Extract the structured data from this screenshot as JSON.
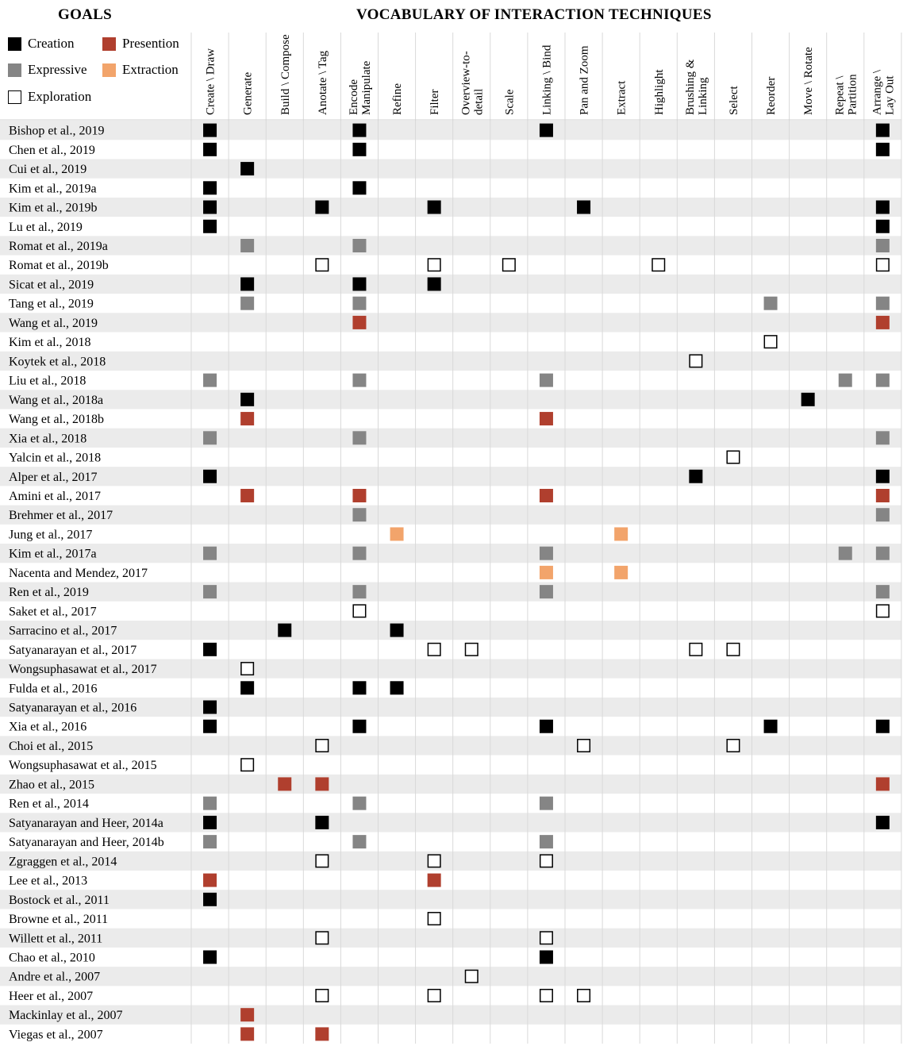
{
  "goals_title": "GOALS",
  "vocab_title": "VOCABULARY OF INTERACTION TECHNIQUES",
  "legend": [
    {
      "key": "C",
      "label": "Creation",
      "color": "#000000"
    },
    {
      "key": "P",
      "label": "Presention",
      "color": "#b03f2e"
    },
    {
      "key": "E",
      "label": "Expressive",
      "color": "#858585"
    },
    {
      "key": "X",
      "label": "Extraction",
      "color": "#f2a46b"
    },
    {
      "key": "O",
      "label": "Exploration",
      "color": "#ffffff"
    }
  ],
  "chart_data": {
    "type": "table",
    "columns": [
      "Create \\ Draw",
      "Generate",
      "Build \\ Compose",
      "Anotate \\ Tag",
      "Encode\nManipulate",
      "Refine",
      "Filter",
      "Overview-to-\ndetail",
      "Scale",
      "Linking \\ Bind",
      "Pan and Zoom",
      "Extract",
      "Highlight",
      "Brushing &\nLinking",
      "Select",
      "Reorder",
      "Move \\ Rotate",
      "Repeat \\\nPartition",
      "Arrange \\\nLay Out"
    ],
    "rows": [
      {
        "label": "Bishop et al., 2019",
        "cells": [
          "C",
          "",
          "",
          "",
          "C",
          "",
          "",
          "",
          "",
          "C",
          "",
          "",
          "",
          "",
          "",
          "",
          "",
          "",
          "C"
        ]
      },
      {
        "label": "Chen et al., 2019",
        "cells": [
          "C",
          "",
          "",
          "",
          "C",
          "",
          "",
          "",
          "",
          "",
          "",
          "",
          "",
          "",
          "",
          "",
          "",
          "",
          "C"
        ]
      },
      {
        "label": "Cui et al., 2019",
        "cells": [
          "",
          "C",
          "",
          "",
          "",
          "",
          "",
          "",
          "",
          "",
          "",
          "",
          "",
          "",
          "",
          "",
          "",
          "",
          ""
        ]
      },
      {
        "label": "Kim et al., 2019a",
        "cells": [
          "C",
          "",
          "",
          "",
          "C",
          "",
          "",
          "",
          "",
          "",
          "",
          "",
          "",
          "",
          "",
          "",
          "",
          "",
          ""
        ]
      },
      {
        "label": "Kim et al., 2019b",
        "cells": [
          "C",
          "",
          "",
          "C",
          "",
          "",
          "C",
          "",
          "",
          "",
          "C",
          "",
          "",
          "",
          "",
          "",
          "",
          "",
          "C"
        ]
      },
      {
        "label": "Lu et al., 2019",
        "cells": [
          "C",
          "",
          "",
          "",
          "",
          "",
          "",
          "",
          "",
          "",
          "",
          "",
          "",
          "",
          "",
          "",
          "",
          "",
          "C"
        ]
      },
      {
        "label": "Romat et al., 2019a",
        "cells": [
          "",
          "E",
          "",
          "",
          "E",
          "",
          "",
          "",
          "",
          "",
          "",
          "",
          "",
          "",
          "",
          "",
          "",
          "",
          "E"
        ]
      },
      {
        "label": "Romat et al., 2019b",
        "cells": [
          "",
          "",
          "",
          "O",
          "",
          "",
          "O",
          "",
          "O",
          "",
          "",
          "",
          "O",
          "",
          "",
          "",
          "",
          "",
          "O"
        ]
      },
      {
        "label": "Sicat et al., 2019",
        "cells": [
          "",
          "C",
          "",
          "",
          "C",
          "",
          "C",
          "",
          "",
          "",
          "",
          "",
          "",
          "",
          "",
          "",
          "",
          "",
          ""
        ]
      },
      {
        "label": "Tang et al., 2019",
        "cells": [
          "",
          "E",
          "",
          "",
          "E",
          "",
          "",
          "",
          "",
          "",
          "",
          "",
          "",
          "",
          "",
          "E",
          "",
          "",
          "E"
        ]
      },
      {
        "label": "Wang et al., 2019",
        "cells": [
          "",
          "",
          "",
          "",
          "P",
          "",
          "",
          "",
          "",
          "",
          "",
          "",
          "",
          "",
          "",
          "",
          "",
          "",
          "P"
        ]
      },
      {
        "label": "Kim et al., 2018",
        "cells": [
          "",
          "",
          "",
          "",
          "",
          "",
          "",
          "",
          "",
          "",
          "",
          "",
          "",
          "",
          "",
          "O",
          "",
          "",
          ""
        ]
      },
      {
        "label": "Koytek et al., 2018",
        "cells": [
          "",
          "",
          "",
          "",
          "",
          "",
          "",
          "",
          "",
          "",
          "",
          "",
          "",
          "O",
          "",
          "",
          "",
          "",
          ""
        ]
      },
      {
        "label": "Liu et al., 2018",
        "cells": [
          "E",
          "",
          "",
          "",
          "E",
          "",
          "",
          "",
          "",
          "E",
          "",
          "",
          "",
          "",
          "",
          "",
          "",
          "E",
          "E"
        ]
      },
      {
        "label": "Wang et al., 2018a",
        "cells": [
          "",
          "C",
          "",
          "",
          "",
          "",
          "",
          "",
          "",
          "",
          "",
          "",
          "",
          "",
          "",
          "",
          "C",
          "",
          ""
        ]
      },
      {
        "label": "Wang et al., 2018b",
        "cells": [
          "",
          "P",
          "",
          "",
          "",
          "",
          "",
          "",
          "",
          "P",
          "",
          "",
          "",
          "",
          "",
          "",
          "",
          "",
          ""
        ]
      },
      {
        "label": "Xia et al., 2018",
        "cells": [
          "E",
          "",
          "",
          "",
          "E",
          "",
          "",
          "",
          "",
          "",
          "",
          "",
          "",
          "",
          "",
          "",
          "",
          "",
          "E"
        ]
      },
      {
        "label": "Yalcin et al., 2018",
        "cells": [
          "",
          "",
          "",
          "",
          "",
          "",
          "",
          "",
          "",
          "",
          "",
          "",
          "",
          "",
          "O",
          "",
          "",
          "",
          ""
        ]
      },
      {
        "label": "Alper et al., 2017",
        "cells": [
          "C",
          "",
          "",
          "",
          "",
          "",
          "",
          "",
          "",
          "",
          "",
          "",
          "",
          "C",
          "",
          "",
          "",
          "",
          "C"
        ]
      },
      {
        "label": "Amini et al., 2017",
        "cells": [
          "",
          "P",
          "",
          "",
          "P",
          "",
          "",
          "",
          "",
          "P",
          "",
          "",
          "",
          "",
          "",
          "",
          "",
          "",
          "P"
        ]
      },
      {
        "label": "Brehmer et al., 2017",
        "cells": [
          "",
          "",
          "",
          "",
          "E",
          "",
          "",
          "",
          "",
          "",
          "",
          "",
          "",
          "",
          "",
          "",
          "",
          "",
          "E"
        ]
      },
      {
        "label": "Jung et al., 2017",
        "cells": [
          "",
          "",
          "",
          "",
          "",
          "X",
          "",
          "",
          "",
          "",
          "",
          "X",
          "",
          "",
          "",
          "",
          "",
          "",
          ""
        ]
      },
      {
        "label": "Kim et al., 2017a",
        "cells": [
          "E",
          "",
          "",
          "",
          "E",
          "",
          "",
          "",
          "",
          "E",
          "",
          "",
          "",
          "",
          "",
          "",
          "",
          "E",
          "E"
        ]
      },
      {
        "label": "Nacenta and Mendez, 2017",
        "cells": [
          "",
          "",
          "",
          "",
          "",
          "",
          "",
          "",
          "",
          "X",
          "",
          "X",
          "",
          "",
          "",
          "",
          "",
          "",
          ""
        ]
      },
      {
        "label": "Ren et al., 2019",
        "cells": [
          "E",
          "",
          "",
          "",
          "E",
          "",
          "",
          "",
          "",
          "E",
          "",
          "",
          "",
          "",
          "",
          "",
          "",
          "",
          "E"
        ]
      },
      {
        "label": "Saket et al., 2017",
        "cells": [
          "",
          "",
          "",
          "",
          "O",
          "",
          "",
          "",
          "",
          "",
          "",
          "",
          "",
          "",
          "",
          "",
          "",
          "",
          "O"
        ]
      },
      {
        "label": "Sarracino et al., 2017",
        "cells": [
          "",
          "",
          "C",
          "",
          "",
          "C",
          "",
          "",
          "",
          "",
          "",
          "",
          "",
          "",
          "",
          "",
          "",
          "",
          ""
        ]
      },
      {
        "label": "Satyanarayan et al., 2017",
        "cells": [
          "C",
          "",
          "",
          "",
          "",
          "",
          "O",
          "O",
          "",
          "",
          "",
          "",
          "",
          "O",
          "O",
          "",
          "",
          "",
          ""
        ]
      },
      {
        "label": "Wongsuphasawat et al., 2017",
        "cells": [
          "",
          "O",
          "",
          "",
          "",
          "",
          "",
          "",
          "",
          "",
          "",
          "",
          "",
          "",
          "",
          "",
          "",
          "",
          ""
        ]
      },
      {
        "label": "Fulda et al., 2016",
        "cells": [
          "",
          "C",
          "",
          "",
          "C",
          "C",
          "",
          "",
          "",
          "",
          "",
          "",
          "",
          "",
          "",
          "",
          "",
          "",
          ""
        ]
      },
      {
        "label": "Satyanarayan et al., 2016",
        "cells": [
          "C",
          "",
          "",
          "",
          "",
          "",
          "",
          "",
          "",
          "",
          "",
          "",
          "",
          "",
          "",
          "",
          "",
          "",
          ""
        ]
      },
      {
        "label": "Xia et al., 2016",
        "cells": [
          "C",
          "",
          "",
          "",
          "C",
          "",
          "",
          "",
          "",
          "C",
          "",
          "",
          "",
          "",
          "",
          "C",
          "",
          "",
          "C"
        ]
      },
      {
        "label": "Choi et al., 2015",
        "cells": [
          "",
          "",
          "",
          "O",
          "",
          "",
          "",
          "",
          "",
          "",
          "O",
          "",
          "",
          "",
          "O",
          "",
          "",
          "",
          ""
        ]
      },
      {
        "label": "Wongsuphasawat et al., 2015",
        "cells": [
          "",
          "O",
          "",
          "",
          "",
          "",
          "",
          "",
          "",
          "",
          "",
          "",
          "",
          "",
          "",
          "",
          "",
          "",
          ""
        ]
      },
      {
        "label": "Zhao et al., 2015",
        "cells": [
          "",
          "",
          "P",
          "P",
          "",
          "",
          "",
          "",
          "",
          "",
          "",
          "",
          "",
          "",
          "",
          "",
          "",
          "",
          "P"
        ]
      },
      {
        "label": "Ren et al., 2014",
        "cells": [
          "E",
          "",
          "",
          "",
          "E",
          "",
          "",
          "",
          "",
          "E",
          "",
          "",
          "",
          "",
          "",
          "",
          "",
          "",
          ""
        ]
      },
      {
        "label": "Satyanarayan and Heer, 2014a",
        "cells": [
          "C",
          "",
          "",
          "C",
          "",
          "",
          "",
          "",
          "",
          "",
          "",
          "",
          "",
          "",
          "",
          "",
          "",
          "",
          "C"
        ]
      },
      {
        "label": "Satyanarayan and Heer, 2014b",
        "cells": [
          "E",
          "",
          "",
          "",
          "E",
          "",
          "",
          "",
          "",
          "E",
          "",
          "",
          "",
          "",
          "",
          "",
          "",
          "",
          ""
        ]
      },
      {
        "label": "Zgraggen et al., 2014",
        "cells": [
          "",
          "",
          "",
          "O",
          "",
          "",
          "O",
          "",
          "",
          "O",
          "",
          "",
          "",
          "",
          "",
          "",
          "",
          "",
          ""
        ]
      },
      {
        "label": "Lee et al., 2013",
        "cells": [
          "P",
          "",
          "",
          "",
          "",
          "",
          "P",
          "",
          "",
          "",
          "",
          "",
          "",
          "",
          "",
          "",
          "",
          "",
          ""
        ]
      },
      {
        "label": "Bostock et al., 2011",
        "cells": [
          "C",
          "",
          "",
          "",
          "",
          "",
          "",
          "",
          "",
          "",
          "",
          "",
          "",
          "",
          "",
          "",
          "",
          "",
          ""
        ]
      },
      {
        "label": "Browne et al., 2011",
        "cells": [
          "",
          "",
          "",
          "",
          "",
          "",
          "O",
          "",
          "",
          "",
          "",
          "",
          "",
          "",
          "",
          "",
          "",
          "",
          ""
        ]
      },
      {
        "label": "Willett et al., 2011",
        "cells": [
          "",
          "",
          "",
          "O",
          "",
          "",
          "",
          "",
          "",
          "O",
          "",
          "",
          "",
          "",
          "",
          "",
          "",
          "",
          ""
        ]
      },
      {
        "label": "Chao et al., 2010",
        "cells": [
          "C",
          "",
          "",
          "",
          "",
          "",
          "",
          "",
          "",
          "C",
          "",
          "",
          "",
          "",
          "",
          "",
          "",
          "",
          ""
        ]
      },
      {
        "label": "Andre et al., 2007",
        "cells": [
          "",
          "",
          "",
          "",
          "",
          "",
          "",
          "O",
          "",
          "",
          "",
          "",
          "",
          "",
          "",
          "",
          "",
          "",
          ""
        ]
      },
      {
        "label": "Heer et al., 2007",
        "cells": [
          "",
          "",
          "",
          "O",
          "",
          "",
          "O",
          "",
          "",
          "O",
          "O",
          "",
          "",
          "",
          "",
          "",
          "",
          "",
          ""
        ]
      },
      {
        "label": "Mackinlay et al., 2007",
        "cells": [
          "",
          "P",
          "",
          "",
          "",
          "",
          "",
          "",
          "",
          "",
          "",
          "",
          "",
          "",
          "",
          "",
          "",
          "",
          ""
        ]
      },
      {
        "label": "Viegas et al., 2007",
        "cells": [
          "",
          "P",
          "",
          "P",
          "",
          "",
          "",
          "",
          "",
          "",
          "",
          "",
          "",
          "",
          "",
          "",
          "",
          "",
          ""
        ]
      }
    ]
  }
}
